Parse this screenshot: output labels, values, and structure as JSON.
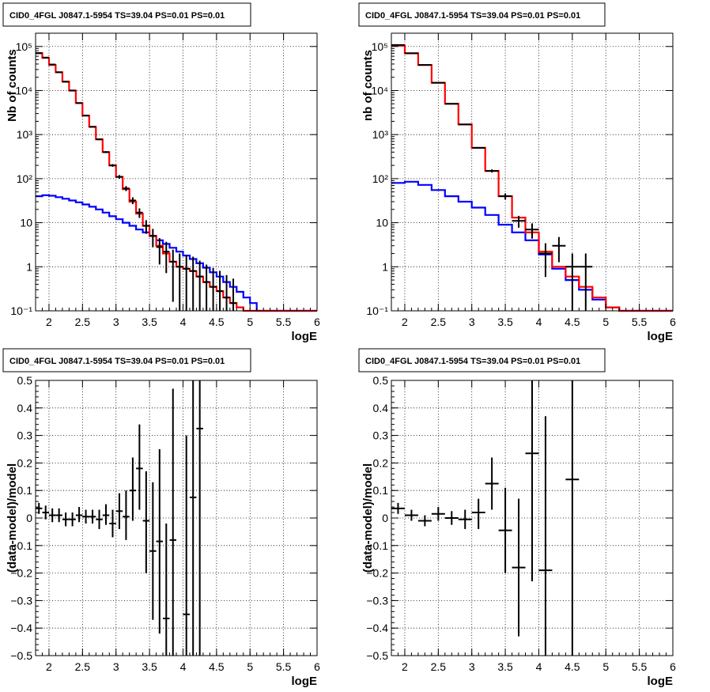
{
  "colors": {
    "total_model": "#ff0000",
    "source_model": "#0000ff",
    "data": "#000000"
  },
  "chart_data": [
    {
      "type": "line",
      "title": "CID0_4FGL J0847.1-5954 TS=39.04 PS=0.01 PS=0.01",
      "xlabel": "logE",
      "ylabel": "Nb of counts",
      "xlim": [
        1.8,
        6
      ],
      "ylim": [
        0.1,
        200000
      ],
      "yscale": "log",
      "grid": true,
      "xticks": [
        {
          "v": 2,
          "label": "2"
        },
        {
          "v": 2.5,
          "label": "2.5"
        },
        {
          "v": 3,
          "label": "3"
        },
        {
          "v": 3.5,
          "label": "3.5"
        },
        {
          "v": 4,
          "label": "4"
        },
        {
          "v": 4.5,
          "label": "4.5"
        },
        {
          "v": 5,
          "label": "5"
        },
        {
          "v": 5.5,
          "label": "5.5"
        },
        {
          "v": 6,
          "label": "6"
        }
      ],
      "yticks": [
        {
          "v": 0.1,
          "label": "10⁻¹"
        },
        {
          "v": 1,
          "label": "1"
        },
        {
          "v": 10,
          "label": "10"
        },
        {
          "v": 100,
          "label": "10²"
        },
        {
          "v": 1000,
          "label": "10³"
        },
        {
          "v": 10000,
          "label": "10⁴"
        },
        {
          "v": 100000,
          "label": "10⁵"
        }
      ],
      "bin_edges": [
        1.8,
        1.9,
        2.0,
        2.1,
        2.2,
        2.3,
        2.4,
        2.5,
        2.6,
        2.7,
        2.8,
        2.9,
        3.0,
        3.1,
        3.2,
        3.3,
        3.4,
        3.5,
        3.6,
        3.7,
        3.8,
        3.9,
        4.0,
        4.1,
        4.2,
        4.3,
        4.4,
        4.5,
        4.6,
        4.7,
        4.8,
        4.9,
        5.0,
        5.1,
        5.2,
        5.3,
        5.4,
        5.5,
        5.6,
        5.7,
        5.8,
        5.9,
        6.0
      ],
      "series": [
        {
          "role": "total_model",
          "values": [
            70000,
            55000,
            38000,
            26000,
            16000,
            10000,
            5200,
            2700,
            1500,
            780,
            400,
            200,
            110,
            58,
            30,
            16,
            8.5,
            5,
            3,
            2,
            1.3,
            1,
            0.9,
            0.8,
            0.6,
            0.45,
            0.35,
            0.28,
            0.2,
            0.15,
            0.12,
            0.1,
            0.1,
            0.1,
            0.1,
            0.1,
            0.1,
            0.1,
            0.1,
            0.1,
            0.1,
            0.1
          ]
        },
        {
          "role": "source_model",
          "values": [
            40,
            42,
            41,
            38,
            35,
            32,
            29,
            26,
            23,
            20,
            17,
            14,
            12,
            10,
            8.5,
            7,
            6,
            5,
            4,
            3.3,
            2.7,
            2.2,
            1.8,
            1.5,
            1.2,
            0.95,
            0.75,
            0.6,
            0.45,
            0.35,
            0.27,
            0.2,
            0.15,
            0.1,
            0.1,
            0.1,
            0.1,
            0.1,
            0.1,
            0.1,
            0.1,
            0.1
          ]
        }
      ],
      "points": [
        {
          "x": 1.85,
          "xerr": 0.05,
          "y": 71000
        },
        {
          "x": 1.95,
          "xerr": 0.05,
          "y": 56000
        },
        {
          "x": 2.05,
          "xerr": 0.05,
          "y": 39000
        },
        {
          "x": 2.15,
          "xerr": 0.05,
          "y": 26000
        },
        {
          "x": 2.25,
          "xerr": 0.05,
          "y": 15800
        },
        {
          "x": 2.35,
          "xerr": 0.05,
          "y": 10000
        },
        {
          "x": 2.45,
          "xerr": 0.05,
          "y": 5200
        },
        {
          "x": 2.55,
          "xerr": 0.05,
          "y": 2700
        },
        {
          "x": 2.65,
          "xerr": 0.05,
          "y": 1500
        },
        {
          "x": 2.75,
          "xerr": 0.05,
          "y": 780
        },
        {
          "x": 2.85,
          "xerr": 0.05,
          "y": 400
        },
        {
          "x": 2.95,
          "xerr": 0.05,
          "y": 200
        },
        {
          "x": 3.05,
          "xerr": 0.05,
          "y": 110
        },
        {
          "x": 3.15,
          "xerr": 0.05,
          "y": 60
        },
        {
          "x": 3.25,
          "xerr": 0.05,
          "y": 32
        },
        {
          "x": 3.35,
          "xerr": 0.05,
          "y": 17
        },
        {
          "x": 3.45,
          "xerr": 0.05,
          "y": 8.5
        },
        {
          "x": 3.55,
          "xerr": 0.05,
          "y": 5
        },
        {
          "x": 3.65,
          "xerr": 0.05,
          "y": 2.8
        },
        {
          "x": 3.75,
          "xerr": 0.05,
          "y": 2.2
        },
        {
          "x": 3.85,
          "xerr": 0.05,
          "y": 1.3
        },
        {
          "x": 3.95,
          "xerr": 0.05,
          "y": 1
        },
        {
          "x": 4.05,
          "xerr": 0.05,
          "y": 0.9
        },
        {
          "x": 4.15,
          "xerr": 0.05,
          "y": 0.8
        },
        {
          "x": 4.25,
          "xerr": 0.05,
          "y": 0.6
        },
        {
          "x": 4.35,
          "xerr": 0.05,
          "y": 0.45
        },
        {
          "x": 4.45,
          "xerr": 0.05,
          "y": 0.35
        },
        {
          "x": 4.55,
          "xerr": 0.05,
          "y": 0.28
        },
        {
          "x": 4.65,
          "xerr": 0.05,
          "y": 0.2
        },
        {
          "x": 4.75,
          "xerr": 0.05,
          "y": 0.15
        }
      ]
    },
    {
      "type": "line",
      "title": "CID0_4FGL J0847.1-5954 TS=39.04 PS=0.01 PS=0.01",
      "xlabel": "logE",
      "ylabel": "nb of counts",
      "xlim": [
        1.8,
        6
      ],
      "ylim": [
        0.1,
        200000
      ],
      "yscale": "log",
      "grid": true,
      "xticks": [
        {
          "v": 2,
          "label": "2"
        },
        {
          "v": 2.5,
          "label": "2.5"
        },
        {
          "v": 3,
          "label": "3"
        },
        {
          "v": 3.5,
          "label": "3.5"
        },
        {
          "v": 4,
          "label": "4"
        },
        {
          "v": 4.5,
          "label": "4.5"
        },
        {
          "v": 5,
          "label": "5"
        },
        {
          "v": 5.5,
          "label": "5.5"
        },
        {
          "v": 6,
          "label": "6"
        }
      ],
      "yticks": [
        {
          "v": 0.1,
          "label": "10⁻¹"
        },
        {
          "v": 1,
          "label": "1"
        },
        {
          "v": 10,
          "label": "10"
        },
        {
          "v": 100,
          "label": "10²"
        },
        {
          "v": 1000,
          "label": "10³"
        },
        {
          "v": 10000,
          "label": "10⁴"
        },
        {
          "v": 100000,
          "label": "10⁵"
        }
      ],
      "bin_edges": [
        1.8,
        2.0,
        2.2,
        2.4,
        2.6,
        2.8,
        3.0,
        3.2,
        3.4,
        3.6,
        3.8,
        4.0,
        4.2,
        4.4,
        4.6,
        4.8,
        5.0,
        5.2,
        5.4,
        5.6,
        5.8,
        6.0
      ],
      "series": [
        {
          "role": "total_model",
          "values": [
            105000,
            70000,
            38000,
            15000,
            5000,
            1700,
            500,
            150,
            40,
            13,
            6,
            2.2,
            1,
            0.6,
            0.35,
            0.2,
            0.12,
            0.1,
            0.1,
            0.1,
            0.1
          ]
        },
        {
          "role": "source_model",
          "values": [
            80,
            85,
            72,
            55,
            40,
            30,
            22,
            15,
            9,
            6,
            4,
            1.9,
            0.9,
            0.5,
            0.3,
            0.18,
            0.12,
            0.1,
            0.1,
            0.1,
            0.1
          ]
        }
      ],
      "points": [
        {
          "x": 1.9,
          "xerr": 0.1,
          "y": 108000
        },
        {
          "x": 2.1,
          "xerr": 0.1,
          "y": 70000
        },
        {
          "x": 2.3,
          "xerr": 0.1,
          "y": 38000
        },
        {
          "x": 2.5,
          "xerr": 0.1,
          "y": 15000
        },
        {
          "x": 2.7,
          "xerr": 0.1,
          "y": 5000
        },
        {
          "x": 2.9,
          "xerr": 0.1,
          "y": 1700
        },
        {
          "x": 3.1,
          "xerr": 0.1,
          "y": 500
        },
        {
          "x": 3.3,
          "xerr": 0.1,
          "y": 150
        },
        {
          "x": 3.5,
          "xerr": 0.1,
          "y": 40
        },
        {
          "x": 3.7,
          "xerr": 0.1,
          "y": 11
        },
        {
          "x": 3.9,
          "xerr": 0.1,
          "y": 7
        },
        {
          "x": 4.1,
          "xerr": 0.1,
          "y": 2
        },
        {
          "x": 4.3,
          "xerr": 0.1,
          "y": 3
        },
        {
          "x": 4.5,
          "xerr": 0.1,
          "y": 1
        },
        {
          "x": 4.7,
          "xerr": 0.1,
          "y": 1
        }
      ]
    },
    {
      "type": "scatter",
      "title": "CID0_4FGL J0847.1-5954 TS=39.04 PS=0.01 PS=0.01",
      "xlabel": "logE",
      "ylabel": "(data-model)/model",
      "xlim": [
        1.8,
        6
      ],
      "ylim": [
        -0.5,
        0.5
      ],
      "yscale": "linear",
      "grid": true,
      "xticks": [
        {
          "v": 2,
          "label": "2"
        },
        {
          "v": 2.5,
          "label": "2.5"
        },
        {
          "v": 3,
          "label": "3"
        },
        {
          "v": 3.5,
          "label": "3.5"
        },
        {
          "v": 4,
          "label": "4"
        },
        {
          "v": 4.5,
          "label": "4.5"
        },
        {
          "v": 5,
          "label": "5"
        },
        {
          "v": 5.5,
          "label": "5.5"
        },
        {
          "v": 6,
          "label": "6"
        }
      ],
      "yticks": [
        {
          "v": -0.5,
          "label": "−0.5"
        },
        {
          "v": -0.4,
          "label": "−0.4"
        },
        {
          "v": -0.3,
          "label": "−0.3"
        },
        {
          "v": -0.2,
          "label": "−0.2"
        },
        {
          "v": -0.1,
          "label": "−0.1"
        },
        {
          "v": 0,
          "label": "0"
        },
        {
          "v": 0.1,
          "label": "0.1"
        },
        {
          "v": 0.2,
          "label": "0.2"
        },
        {
          "v": 0.3,
          "label": "0.3"
        },
        {
          "v": 0.4,
          "label": "0.4"
        },
        {
          "v": 0.5,
          "label": "0.5"
        }
      ],
      "series": [],
      "points": [
        {
          "x": 1.85,
          "xerr": 0.05,
          "y": 0.035,
          "ylo": 0.015,
          "yhi": 0.055
        },
        {
          "x": 1.95,
          "xerr": 0.05,
          "y": 0.02,
          "ylo": -0.005,
          "yhi": 0.045
        },
        {
          "x": 2.05,
          "xerr": 0.05,
          "y": 0.01,
          "ylo": -0.015,
          "yhi": 0.035
        },
        {
          "x": 2.15,
          "xerr": 0.05,
          "y": 0.01,
          "ylo": -0.015,
          "yhi": 0.035
        },
        {
          "x": 2.25,
          "xerr": 0.05,
          "y": -0.005,
          "ylo": -0.03,
          "yhi": 0.02
        },
        {
          "x": 2.35,
          "xerr": 0.05,
          "y": -0.005,
          "ylo": -0.03,
          "yhi": 0.02
        },
        {
          "x": 2.45,
          "xerr": 0.05,
          "y": 0.01,
          "ylo": -0.015,
          "yhi": 0.04
        },
        {
          "x": 2.55,
          "xerr": 0.05,
          "y": 0.005,
          "ylo": -0.02,
          "yhi": 0.03
        },
        {
          "x": 2.65,
          "xerr": 0.05,
          "y": 0.005,
          "ylo": -0.02,
          "yhi": 0.03
        },
        {
          "x": 2.75,
          "xerr": 0.05,
          "y": -0.005,
          "ylo": -0.04,
          "yhi": 0.03
        },
        {
          "x": 2.85,
          "xerr": 0.05,
          "y": 0.01,
          "ylo": -0.025,
          "yhi": 0.05
        },
        {
          "x": 2.95,
          "xerr": 0.05,
          "y": -0.02,
          "ylo": -0.07,
          "yhi": 0.03
        },
        {
          "x": 3.05,
          "xerr": 0.05,
          "y": 0.025,
          "ylo": -0.04,
          "yhi": 0.09
        },
        {
          "x": 3.15,
          "xerr": 0.05,
          "y": 0.005,
          "ylo": -0.08,
          "yhi": 0.1
        },
        {
          "x": 3.25,
          "xerr": 0.05,
          "y": 0.1,
          "ylo": -0.01,
          "yhi": 0.22
        },
        {
          "x": 3.35,
          "xerr": 0.05,
          "y": 0.18,
          "ylo": 0.03,
          "yhi": 0.34
        },
        {
          "x": 3.45,
          "xerr": 0.05,
          "y": -0.01,
          "ylo": -0.2,
          "yhi": 0.17
        },
        {
          "x": 3.55,
          "xerr": 0.05,
          "y": -0.12,
          "ylo": -0.37,
          "yhi": 0.13
        },
        {
          "x": 3.65,
          "xerr": 0.05,
          "y": -0.085,
          "ylo": -0.42,
          "yhi": 0.25
        },
        {
          "x": 3.75,
          "xerr": 0.05,
          "y": -0.365,
          "ylo": -0.5,
          "yhi": -0.02
        },
        {
          "x": 3.85,
          "xerr": 0.05,
          "y": -0.08,
          "ylo": -0.5,
          "yhi": 0.47
        },
        {
          "x": 4.05,
          "xerr": 0.05,
          "y": -0.35,
          "ylo": -0.5,
          "yhi": 0.3
        },
        {
          "x": 4.15,
          "xerr": 0.05,
          "y": 0.075,
          "ylo": -0.5,
          "yhi": 0.5
        },
        {
          "x": 4.25,
          "xerr": 0.05,
          "y": 0.325,
          "ylo": -0.5,
          "yhi": 0.5
        }
      ]
    },
    {
      "type": "scatter",
      "title": "CID0_4FGL J0847.1-5954 TS=39.04 PS=0.01 PS=0.01",
      "xlabel": "logE",
      "ylabel": "(data-model)/model",
      "xlim": [
        1.8,
        6
      ],
      "ylim": [
        -0.5,
        0.5
      ],
      "yscale": "linear",
      "grid": true,
      "xticks": [
        {
          "v": 2,
          "label": "2"
        },
        {
          "v": 2.5,
          "label": "2.5"
        },
        {
          "v": 3,
          "label": "3"
        },
        {
          "v": 3.5,
          "label": "3.5"
        },
        {
          "v": 4,
          "label": "4"
        },
        {
          "v": 4.5,
          "label": "4.5"
        },
        {
          "v": 5,
          "label": "5"
        },
        {
          "v": 5.5,
          "label": "5.5"
        },
        {
          "v": 6,
          "label": "6"
        }
      ],
      "yticks": [
        {
          "v": -0.5,
          "label": "−0.5"
        },
        {
          "v": -0.4,
          "label": "−0.4"
        },
        {
          "v": -0.3,
          "label": "−0.3"
        },
        {
          "v": -0.2,
          "label": "−0.2"
        },
        {
          "v": -0.1,
          "label": "−0.1"
        },
        {
          "v": 0,
          "label": "0"
        },
        {
          "v": 0.1,
          "label": "0.1"
        },
        {
          "v": 0.2,
          "label": "0.2"
        },
        {
          "v": 0.3,
          "label": "0.3"
        },
        {
          "v": 0.4,
          "label": "0.4"
        },
        {
          "v": 0.5,
          "label": "0.5"
        }
      ],
      "series": [],
      "points": [
        {
          "x": 1.9,
          "xerr": 0.1,
          "y": 0.035,
          "ylo": 0.015,
          "yhi": 0.055
        },
        {
          "x": 2.1,
          "xerr": 0.1,
          "y": 0.01,
          "ylo": -0.01,
          "yhi": 0.03
        },
        {
          "x": 2.3,
          "xerr": 0.1,
          "y": -0.01,
          "ylo": -0.03,
          "yhi": 0.01
        },
        {
          "x": 2.5,
          "xerr": 0.1,
          "y": 0.015,
          "ylo": -0.01,
          "yhi": 0.04
        },
        {
          "x": 2.7,
          "xerr": 0.1,
          "y": 0.0,
          "ylo": -0.025,
          "yhi": 0.025
        },
        {
          "x": 2.9,
          "xerr": 0.1,
          "y": -0.005,
          "ylo": -0.04,
          "yhi": 0.03
        },
        {
          "x": 3.1,
          "xerr": 0.1,
          "y": 0.02,
          "ylo": -0.04,
          "yhi": 0.07
        },
        {
          "x": 3.3,
          "xerr": 0.1,
          "y": 0.125,
          "ylo": 0.03,
          "yhi": 0.22
        },
        {
          "x": 3.5,
          "xerr": 0.1,
          "y": -0.045,
          "ylo": -0.2,
          "yhi": 0.11
        },
        {
          "x": 3.7,
          "xerr": 0.1,
          "y": -0.18,
          "ylo": -0.43,
          "yhi": 0.07
        },
        {
          "x": 3.9,
          "xerr": 0.1,
          "y": 0.235,
          "ylo": -0.23,
          "yhi": 0.5
        },
        {
          "x": 4.1,
          "xerr": 0.1,
          "y": -0.19,
          "ylo": -0.5,
          "yhi": 0.37
        },
        {
          "x": 4.5,
          "xerr": 0.1,
          "y": 0.14,
          "ylo": -0.5,
          "yhi": 0.5
        }
      ]
    }
  ]
}
